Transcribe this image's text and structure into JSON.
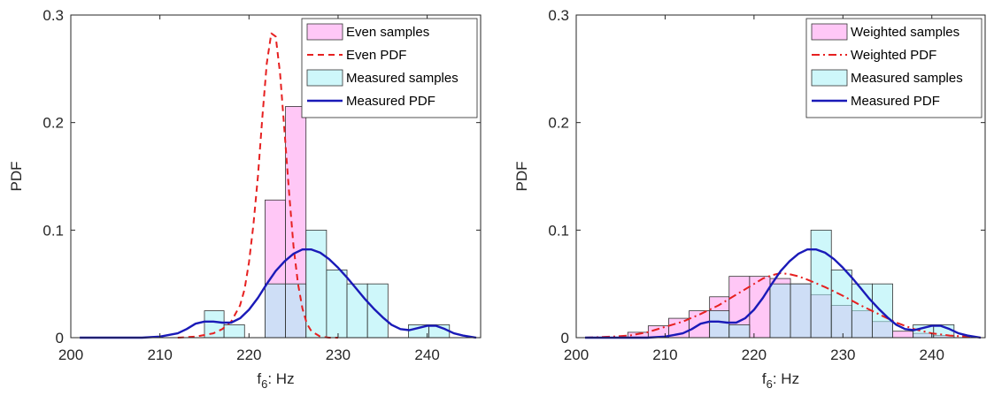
{
  "chart_data": [
    {
      "type": "histogram+line",
      "xlabel": {
        "base": "f",
        "sub": "6",
        "rest": ": Hz"
      },
      "ylabel": "PDF",
      "xlim": [
        200,
        246
      ],
      "ylim": [
        0,
        0.3
      ],
      "xticks": [
        "200",
        "210",
        "220",
        "230",
        "240"
      ],
      "yticks": [
        "0",
        "0.1",
        "0.2",
        "0.3"
      ],
      "grid": false,
      "legend_position": "top-right",
      "bin_edges": [
        215,
        217.2,
        219.5,
        221.8,
        224.1,
        226.4,
        228.7,
        231,
        233.3,
        235.6,
        237.9,
        240.2,
        242.5
      ],
      "series": [
        {
          "name": "Even samples",
          "kind": "hist",
          "color": "#ff99ee",
          "values": [
            0,
            0,
            0,
            0.128,
            0.215,
            0,
            0,
            0,
            0,
            0,
            0,
            0
          ]
        },
        {
          "name": "Even PDF",
          "kind": "line",
          "style": "dashed",
          "color": "#e62020",
          "x": [
            212,
            214,
            216,
            217,
            218,
            219,
            219.5,
            220,
            220.5,
            221,
            221.5,
            222,
            222.5,
            223,
            223.5,
            224,
            224.5,
            225,
            225.5,
            226,
            226.5,
            227,
            228,
            229,
            230
          ],
          "y": [
            0,
            0.001,
            0.004,
            0.008,
            0.015,
            0.03,
            0.045,
            0.07,
            0.105,
            0.15,
            0.205,
            0.255,
            0.283,
            0.28,
            0.245,
            0.19,
            0.135,
            0.085,
            0.05,
            0.027,
            0.013,
            0.006,
            0.001,
            0,
            0
          ]
        },
        {
          "name": "Measured samples",
          "kind": "hist",
          "color": "#a6f0f5",
          "values": [
            0.025,
            0.012,
            0,
            0.05,
            0.05,
            0.1,
            0.063,
            0.05,
            0.05,
            0,
            0.012,
            0.012
          ]
        },
        {
          "name": "Measured PDF",
          "kind": "line",
          "style": "solid",
          "color": "#1a1ab8",
          "x": [
            201,
            205,
            208,
            210,
            212,
            213,
            214,
            215,
            216,
            217,
            218,
            219,
            220,
            221,
            222,
            223,
            224,
            225,
            226,
            227,
            228,
            229,
            230,
            231,
            232,
            233,
            234,
            235,
            236,
            237,
            238,
            239,
            240,
            241,
            242,
            243,
            244,
            245.5
          ],
          "y": [
            0,
            0,
            0,
            0.001,
            0.004,
            0.008,
            0.013,
            0.015,
            0.015,
            0.014,
            0.014,
            0.018,
            0.026,
            0.037,
            0.05,
            0.062,
            0.071,
            0.078,
            0.082,
            0.082,
            0.079,
            0.073,
            0.065,
            0.056,
            0.046,
            0.036,
            0.027,
            0.019,
            0.012,
            0.008,
            0.007,
            0.009,
            0.011,
            0.011,
            0.008,
            0.004,
            0.002,
            0
          ]
        }
      ]
    },
    {
      "type": "histogram+line",
      "xlabel": {
        "base": "f",
        "sub": "6",
        "rest": ": Hz"
      },
      "ylabel": "PDF",
      "xlim": [
        200,
        246
      ],
      "ylim": [
        0,
        0.3
      ],
      "xticks": [
        "200",
        "210",
        "220",
        "230",
        "240"
      ],
      "yticks": [
        "0",
        "0.1",
        "0.2",
        "0.3"
      ],
      "grid": false,
      "legend_position": "top-right",
      "bin_edges": [
        205.8,
        208.1,
        210.4,
        212.7,
        215,
        217.2,
        219.5,
        221.8,
        224.1,
        226.4,
        228.7,
        231,
        233.3,
        235.6,
        237.9,
        240.2,
        242.5
      ],
      "series": [
        {
          "name": "Weighted samples",
          "kind": "hist",
          "color": "#ff99ee",
          "values": [
            0.005,
            0.011,
            0.018,
            0.025,
            0.038,
            0.057,
            0.057,
            0.055,
            0.05,
            0.04,
            0.03,
            0.025,
            0.015,
            0.006,
            0.004,
            0.002
          ]
        },
        {
          "name": "Weighted PDF",
          "kind": "line",
          "style": "dashdot",
          "color": "#e62020",
          "x": [
            201,
            204,
            206,
            208,
            210,
            212,
            214,
            216,
            218,
            220,
            221,
            222,
            223,
            224,
            225,
            226,
            228,
            230,
            232,
            234,
            236,
            238,
            240,
            242,
            244,
            245.5
          ],
          "y": [
            0,
            0.001,
            0.002,
            0.005,
            0.01,
            0.015,
            0.022,
            0.03,
            0.04,
            0.05,
            0.055,
            0.058,
            0.06,
            0.059,
            0.057,
            0.054,
            0.047,
            0.039,
            0.03,
            0.022,
            0.014,
            0.008,
            0.004,
            0.002,
            0.001,
            0
          ]
        },
        {
          "name": "Measured samples",
          "kind": "hist",
          "color": "#a6f0f5",
          "values": [
            0,
            0,
            0,
            0,
            0.025,
            0.012,
            0,
            0.05,
            0.05,
            0.1,
            0.063,
            0.05,
            0.05,
            0,
            0.012,
            0.012
          ]
        },
        {
          "name": "Measured PDF",
          "kind": "line",
          "style": "solid",
          "color": "#1a1ab8",
          "x": [
            201,
            205,
            208,
            210,
            212,
            213,
            214,
            215,
            216,
            217,
            218,
            219,
            220,
            221,
            222,
            223,
            224,
            225,
            226,
            227,
            228,
            229,
            230,
            231,
            232,
            233,
            234,
            235,
            236,
            237,
            238,
            239,
            240,
            241,
            242,
            243,
            244,
            245.5
          ],
          "y": [
            0,
            0,
            0,
            0.001,
            0.004,
            0.008,
            0.013,
            0.015,
            0.015,
            0.014,
            0.014,
            0.018,
            0.026,
            0.037,
            0.05,
            0.062,
            0.071,
            0.078,
            0.082,
            0.082,
            0.079,
            0.073,
            0.065,
            0.056,
            0.046,
            0.036,
            0.027,
            0.019,
            0.012,
            0.008,
            0.007,
            0.009,
            0.011,
            0.011,
            0.008,
            0.004,
            0.002,
            0
          ]
        }
      ]
    }
  ]
}
